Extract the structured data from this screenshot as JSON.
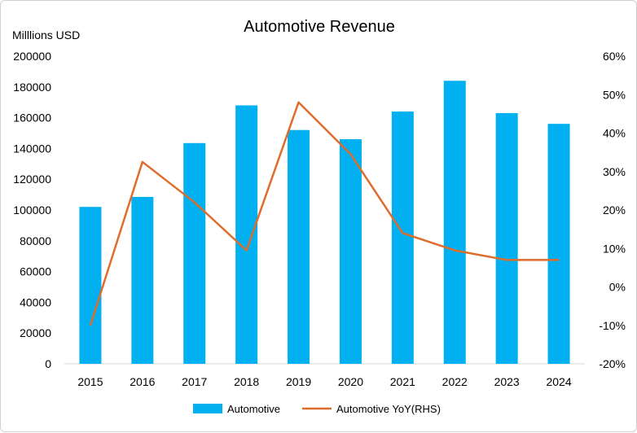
{
  "chart_data": {
    "type": "bar",
    "title": "Automotive Revenue",
    "ylabel": "Milllions USD",
    "xlabel": "",
    "categories": [
      "2015",
      "2016",
      "2017",
      "2018",
      "2019",
      "2020",
      "2021",
      "2022",
      "2023",
      "2024"
    ],
    "series": [
      {
        "name": "Automotive",
        "type": "bar",
        "axis": "left",
        "color": "#00b0f0",
        "values": [
          102000,
          108500,
          143500,
          168000,
          152000,
          146000,
          164000,
          184000,
          163000,
          156000
        ]
      },
      {
        "name": "Automotive YoY(RHS)",
        "type": "line",
        "axis": "right",
        "color": "#e06c2c",
        "values": [
          -10.0,
          32.5,
          22.0,
          9.5,
          48.0,
          34.5,
          14.0,
          9.5,
          7.0,
          7.0
        ]
      }
    ],
    "ylim": [
      0,
      200000
    ],
    "yticks": [
      "0",
      "20000",
      "40000",
      "60000",
      "80000",
      "100000",
      "120000",
      "140000",
      "160000",
      "180000",
      "200000"
    ],
    "y2lim": [
      -20,
      60
    ],
    "y2ticks": [
      "-20%",
      "-10%",
      "0%",
      "10%",
      "20%",
      "30%",
      "40%",
      "50%",
      "60%"
    ],
    "grid": false,
    "legend": "bottom"
  }
}
